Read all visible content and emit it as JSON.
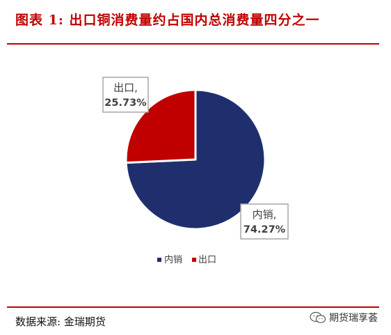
{
  "title": "图表 1: 出口铜消费量约占国内总消费量四分之一",
  "source": "数据来源: 金瑞期货",
  "watermark": {
    "text": "期货瑞享荟",
    "icon": "wechat-icon"
  },
  "colors": {
    "accent": "#c00000",
    "domestic": "#1f2f6e",
    "export": "#c00000",
    "label_border": "#a6a6a6",
    "label_text": "#404040"
  },
  "chart_data": {
    "type": "pie",
    "title": "",
    "slices": [
      {
        "name": "内销",
        "value": 74.27,
        "label_line1": "内销,",
        "label_line2": "74.27%",
        "color": "#1f2f6e"
      },
      {
        "name": "出口",
        "value": 25.73,
        "label_line1": "出口,",
        "label_line2": "25.73%",
        "color": "#c00000"
      }
    ],
    "legend": {
      "position": "bottom",
      "items": [
        "内销",
        "出口"
      ]
    }
  }
}
